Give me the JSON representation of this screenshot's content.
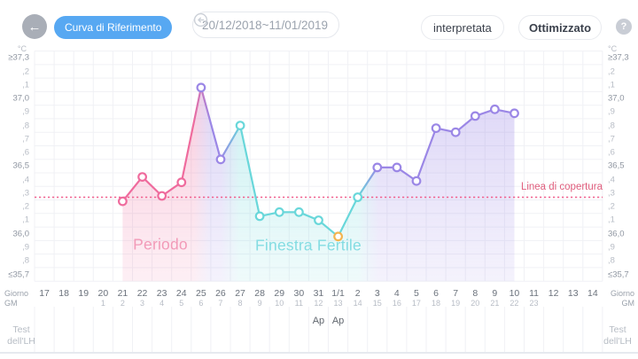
{
  "header": {
    "curve_button": "Curva di Riferimento",
    "date_range": "20/12/2018~11/01/2019",
    "interpretata_button": "interpretata",
    "ottimizzato_button": "Ottimizzato",
    "help_label": "?"
  },
  "colors": {
    "accent_blue": "#57a8f2",
    "pink": "#ef6b9d",
    "purple": "#9b87e6",
    "teal": "#69d7da",
    "orange": "#f3b450",
    "coverline_pink": "#f0618f",
    "period_label_pink": "#f29ab8",
    "fertile_label_teal": "#84dce2",
    "coverline_label_red": "#e05e7d"
  },
  "chart_data": {
    "type": "line",
    "title": "Curva di Riferimento",
    "y_axis": {
      "unit": "°C",
      "min": 35.7,
      "max": 37.3,
      "labels": [
        "≥37,3",
        ",2",
        ",1",
        "37,0",
        ",9",
        ",8",
        ",7",
        ",6",
        "36,5",
        ",4",
        ",3",
        ",2",
        ",1",
        "36,0",
        ",9",
        ",8",
        "≤35,7"
      ],
      "major_indices": [
        0,
        3,
        8,
        13,
        16
      ]
    },
    "x_axis": {
      "row1_label": "Giorno",
      "row2_label": "GM",
      "days": [
        "17",
        "18",
        "19",
        "20",
        "21",
        "22",
        "23",
        "24",
        "25",
        "26",
        "27",
        "28",
        "29",
        "30",
        "31",
        "1/1",
        "2",
        "3",
        "4",
        "5",
        "6",
        "7",
        "8",
        "9",
        "10",
        "11",
        "12",
        "13",
        "14"
      ],
      "cycle_days": [
        "",
        "",
        "",
        "1",
        "2",
        "3",
        "4",
        "5",
        "6",
        "7",
        "8",
        "9",
        "10",
        "11",
        "12",
        "13",
        "14",
        "15",
        "16",
        "17",
        "18",
        "19",
        "20",
        "21",
        "22",
        "23",
        "",
        "",
        ""
      ]
    },
    "coverline": {
      "label": "Linea di copertura",
      "value": 36.27
    },
    "points": [
      {
        "day_index": 4,
        "day": "21",
        "cycle_day": "2",
        "temp": 36.24,
        "color": "pink"
      },
      {
        "day_index": 5,
        "day": "22",
        "cycle_day": "3",
        "temp": 36.42,
        "color": "pink"
      },
      {
        "day_index": 6,
        "day": "23",
        "cycle_day": "4",
        "temp": 36.28,
        "color": "pink"
      },
      {
        "day_index": 7,
        "day": "24",
        "cycle_day": "5",
        "temp": 36.38,
        "color": "pink"
      },
      {
        "day_index": 8,
        "day": "25",
        "cycle_day": "6",
        "temp": 37.08,
        "color": "purple"
      },
      {
        "day_index": 9,
        "day": "26",
        "cycle_day": "7",
        "temp": 36.55,
        "color": "purple"
      },
      {
        "day_index": 10,
        "day": "27",
        "cycle_day": "8",
        "temp": 36.8,
        "color": "teal"
      },
      {
        "day_index": 11,
        "day": "28",
        "cycle_day": "9",
        "temp": 36.13,
        "color": "teal"
      },
      {
        "day_index": 12,
        "day": "29",
        "cycle_day": "10",
        "temp": 36.16,
        "color": "teal"
      },
      {
        "day_index": 13,
        "day": "30",
        "cycle_day": "11",
        "temp": 36.16,
        "color": "teal"
      },
      {
        "day_index": 14,
        "day": "31",
        "cycle_day": "12",
        "temp": 36.1,
        "color": "teal"
      },
      {
        "day_index": 15,
        "day": "1/1",
        "cycle_day": "13",
        "temp": 35.98,
        "color": "orange"
      },
      {
        "day_index": 16,
        "day": "2",
        "cycle_day": "14",
        "temp": 36.27,
        "color": "teal"
      },
      {
        "day_index": 17,
        "day": "3",
        "cycle_day": "15",
        "temp": 36.49,
        "color": "purple"
      },
      {
        "day_index": 18,
        "day": "4",
        "cycle_day": "16",
        "temp": 36.49,
        "color": "purple"
      },
      {
        "day_index": 19,
        "day": "5",
        "cycle_day": "17",
        "temp": 36.39,
        "color": "purple"
      },
      {
        "day_index": 20,
        "day": "6",
        "cycle_day": "18",
        "temp": 36.78,
        "color": "purple"
      },
      {
        "day_index": 21,
        "day": "7",
        "cycle_day": "19",
        "temp": 36.75,
        "color": "purple"
      },
      {
        "day_index": 22,
        "day": "8",
        "cycle_day": "20",
        "temp": 36.87,
        "color": "purple"
      },
      {
        "day_index": 23,
        "day": "9",
        "cycle_day": "21",
        "temp": 36.92,
        "color": "purple"
      },
      {
        "day_index": 24,
        "day": "10",
        "cycle_day": "22",
        "temp": 36.89,
        "color": "purple"
      }
    ],
    "regions": [
      {
        "label": "Periodo",
        "color": "pink"
      },
      {
        "label": "Finestra Fertile",
        "color": "teal"
      }
    ],
    "lh": {
      "row_label": "Test\ndell'LH",
      "markers": [
        {
          "day": "31",
          "label": "Ap"
        },
        {
          "day": "1/1",
          "label": "Ap"
        }
      ]
    }
  }
}
